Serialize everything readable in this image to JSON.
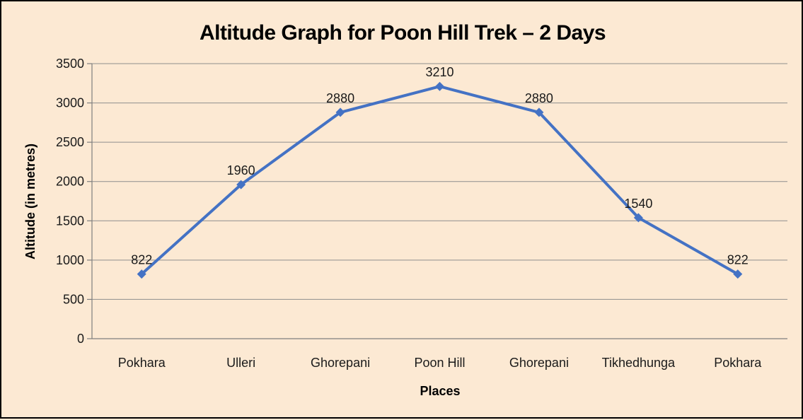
{
  "chart_data": {
    "type": "line",
    "title": "Altitude Graph for Poon Hill Trek – 2 Days",
    "xlabel": "Places",
    "ylabel": "Altitude (in metres)",
    "categories": [
      "Pokhara",
      "Ulleri",
      "Ghorepani",
      "Poon Hill",
      "Ghorepani",
      "Tikhedhunga",
      "Pokhara"
    ],
    "series": [
      {
        "values": [
          822,
          1960,
          2880,
          3210,
          2880,
          1540,
          822
        ]
      }
    ],
    "data_labels": [
      "822",
      "1960",
      "2880",
      "3210",
      "2880",
      "1540",
      "822"
    ],
    "ylim": [
      0,
      3500
    ],
    "yticks": [
      0,
      500,
      1000,
      1500,
      2000,
      2500,
      3000,
      3500
    ],
    "grid": "horizontal",
    "legend": "none",
    "marker": "diamond",
    "colors": {
      "line": "#4472C4",
      "background": "#FCE9D3",
      "gridline": "#8E8E8E",
      "axis": "#7F7F7F",
      "label_text": "#1A1A1A",
      "title_text": "#000000",
      "frame_border": "#000000"
    }
  }
}
